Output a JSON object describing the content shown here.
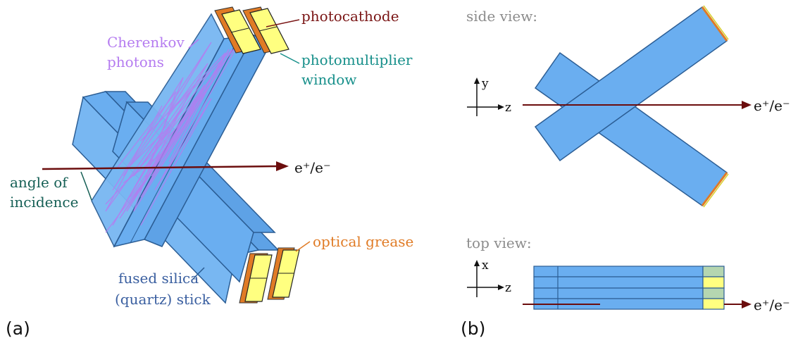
{
  "panel_a": {
    "tag": "(a)",
    "labels": {
      "photocathode": "photocathode",
      "pmt_window_line1": "photomultiplier",
      "pmt_window_line2": "window",
      "cherenkov_line1": "Cherenkov",
      "cherenkov_line2": "photons",
      "beam": "e⁺/e⁻",
      "angle_line1": "angle of",
      "angle_line2": "incidence",
      "grease": "optical grease",
      "stick_line1": "fused silica",
      "stick_line2": "(quartz) stick"
    }
  },
  "panel_b": {
    "tag": "(b)",
    "side_view_title": "side view:",
    "top_view_title": "top view:",
    "side_axis_y": "y",
    "side_axis_z": "z",
    "top_axis_x": "x",
    "top_axis_z": "z",
    "beam_side": "e⁺/e⁻",
    "beam_top": "e⁺/e⁻"
  },
  "colors": {
    "quartz": "#6aaef0",
    "quartz_dark": "#4a8fd6",
    "edge": "#2b5d94",
    "pmt": "#ffff80",
    "grease": "#e07b25",
    "cathode_label": "#7a1515",
    "window_label": "#168f8a",
    "cherenkov": "#b57cf0",
    "beam": "#6b0d0d",
    "angle_label": "#155f55",
    "stick_label": "#3a5fa0",
    "grease_label": "#e07b25"
  }
}
